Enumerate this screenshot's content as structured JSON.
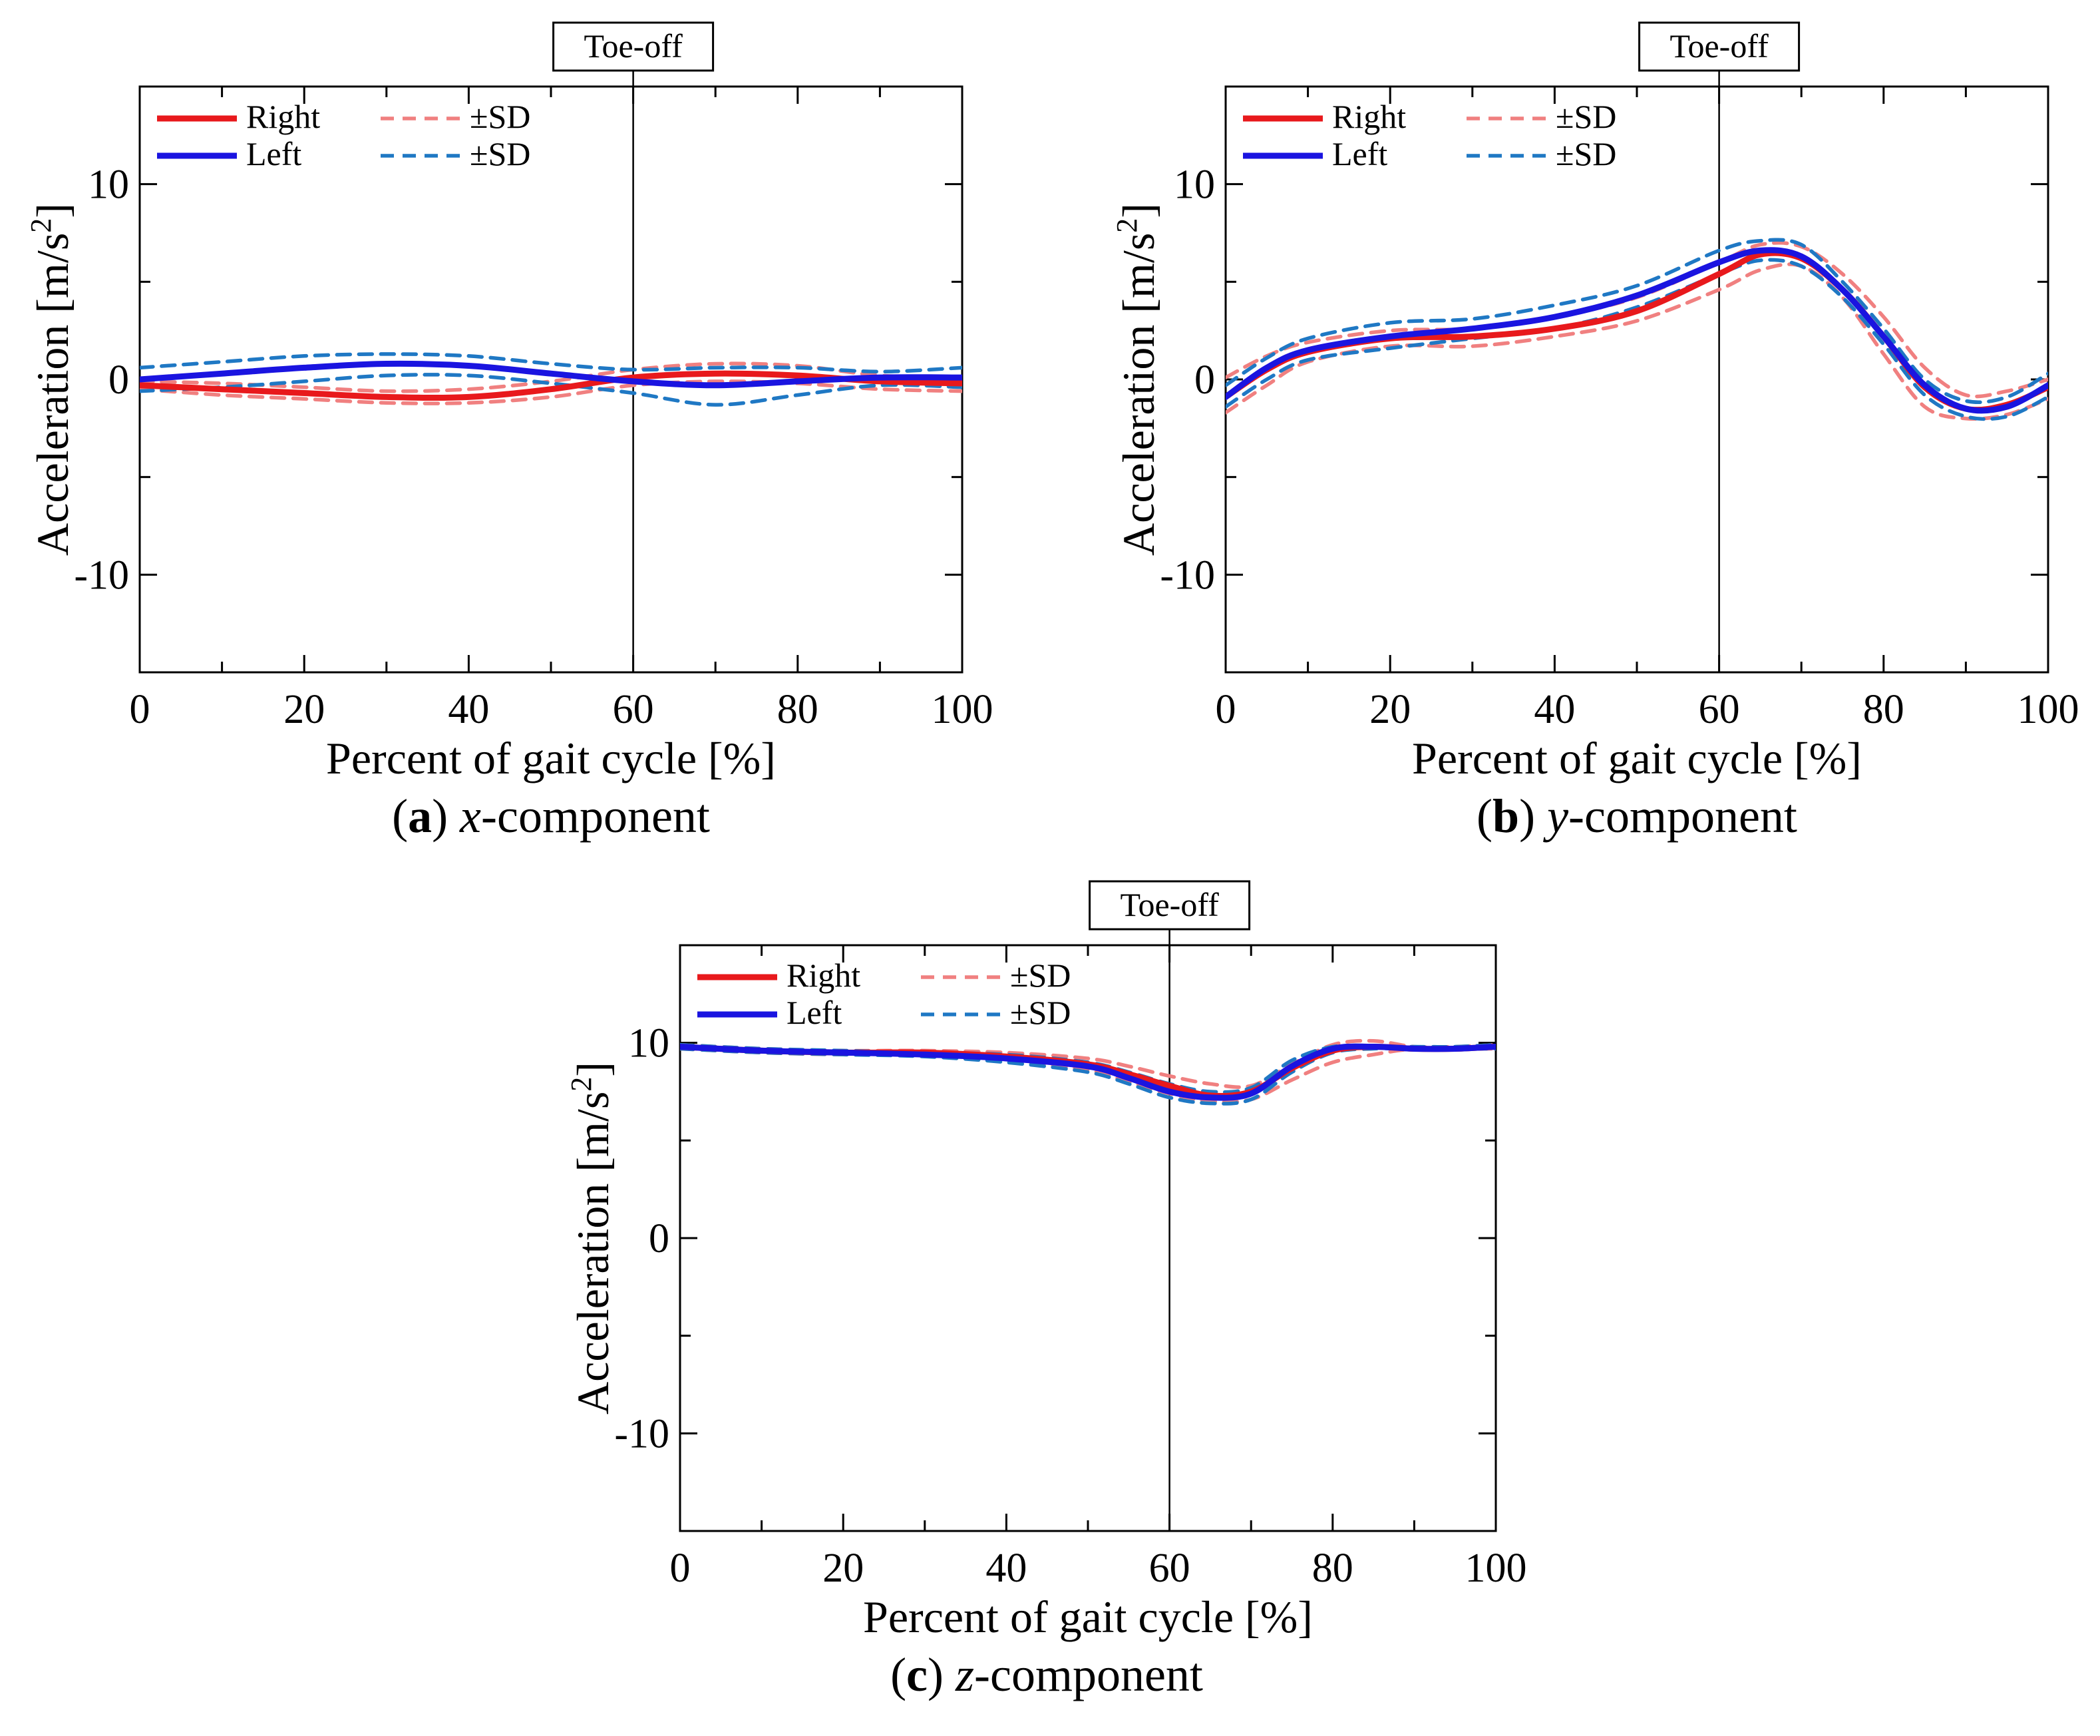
{
  "chart_data": [
    {
      "id": "a",
      "type": "line",
      "caption": {
        "letter": "a",
        "axis": "x",
        "suffix": "-component"
      },
      "xlabel": "Percent of gait cycle [%]",
      "ylabel": "Acceleration [m/s",
      "ylabel_sup": "2",
      "ylabel_close": "]",
      "xlim": [
        0,
        100
      ],
      "ylim": [
        -15,
        15
      ],
      "xticks": [
        0,
        20,
        40,
        60,
        80,
        100
      ],
      "yticks": [
        -10,
        0,
        10
      ],
      "ytick_labels": [
        "-10",
        "0",
        "10"
      ],
      "toe_off": {
        "x": 60,
        "label": "Toe-off"
      },
      "legend": {
        "right": "Right",
        "left": "Left",
        "sd": "±SD"
      },
      "x": [
        0,
        10,
        20,
        30,
        40,
        50,
        60,
        70,
        80,
        90,
        100
      ],
      "series": [
        {
          "name": "Right",
          "role": "mean",
          "color": "#e8191c",
          "values": [
            -0.3,
            -0.5,
            -0.7,
            -0.9,
            -0.9,
            -0.5,
            0.1,
            0.3,
            0.2,
            -0.1,
            -0.2
          ]
        },
        {
          "name": "Right +SD",
          "role": "sd",
          "color": "#f08080",
          "values": [
            -0.1,
            -0.2,
            -0.4,
            -0.6,
            -0.5,
            -0.1,
            0.5,
            0.8,
            0.7,
            0.2,
            0.1
          ]
        },
        {
          "name": "Right -SD",
          "role": "sd",
          "color": "#f08080",
          "values": [
            -0.5,
            -0.8,
            -1.0,
            -1.2,
            -1.2,
            -0.9,
            -0.3,
            -0.1,
            -0.2,
            -0.5,
            -0.6
          ]
        },
        {
          "name": "Left",
          "role": "mean",
          "color": "#1a14e0",
          "values": [
            0.0,
            0.3,
            0.6,
            0.8,
            0.7,
            0.3,
            -0.1,
            -0.3,
            -0.1,
            0.1,
            0.1
          ]
        },
        {
          "name": "Left +SD",
          "role": "sd",
          "color": "#1f78c4",
          "values": [
            0.6,
            0.9,
            1.2,
            1.3,
            1.2,
            0.8,
            0.5,
            0.6,
            0.6,
            0.4,
            0.6
          ]
        },
        {
          "name": "Left -SD",
          "role": "sd",
          "color": "#1f78c4",
          "values": [
            -0.6,
            -0.4,
            -0.1,
            0.2,
            0.2,
            -0.2,
            -0.7,
            -1.3,
            -0.8,
            -0.3,
            -0.4
          ]
        }
      ]
    },
    {
      "id": "b",
      "type": "line",
      "caption": {
        "letter": "b",
        "axis": "y",
        "suffix": "-component"
      },
      "xlabel": "Percent of gait cycle [%]",
      "ylabel": "Acceleration [m/s",
      "ylabel_sup": "2",
      "ylabel_close": "]",
      "xlim": [
        0,
        100
      ],
      "ylim": [
        -15,
        15
      ],
      "xticks": [
        0,
        20,
        40,
        60,
        80,
        100
      ],
      "yticks": [
        -10,
        0,
        10
      ],
      "ytick_labels": [
        "-10",
        "0",
        "10"
      ],
      "toe_off": {
        "x": 60,
        "label": "Toe-off"
      },
      "legend": {
        "right": "Right",
        "left": "Left",
        "sd": "±SD"
      },
      "x": [
        0,
        5,
        10,
        20,
        30,
        40,
        50,
        60,
        65,
        70,
        75,
        80,
        85,
        90,
        95,
        100
      ],
      "series": [
        {
          "name": "Right",
          "role": "mean",
          "color": "#e8191c",
          "values": [
            -0.9,
            0.5,
            1.4,
            2.1,
            2.2,
            2.6,
            3.5,
            5.4,
            6.4,
            6.2,
            4.6,
            2.2,
            -0.4,
            -1.5,
            -1.3,
            -0.4
          ]
        },
        {
          "name": "Right +SD",
          "role": "sd",
          "color": "#f08080",
          "values": [
            0.1,
            1.2,
            1.9,
            2.5,
            2.6,
            3.2,
            4.2,
            6.0,
            6.9,
            6.8,
            5.4,
            3.2,
            0.6,
            -0.8,
            -0.6,
            0.0
          ]
        },
        {
          "name": "Right -SD",
          "role": "sd",
          "color": "#f08080",
          "values": [
            -1.7,
            -0.3,
            0.9,
            1.7,
            1.7,
            2.2,
            3.0,
            4.6,
            5.6,
            5.8,
            4.2,
            1.3,
            -1.4,
            -2.0,
            -1.8,
            -1.0
          ]
        },
        {
          "name": "Left",
          "role": "mean",
          "color": "#1a14e0",
          "values": [
            -0.9,
            0.6,
            1.5,
            2.2,
            2.6,
            3.2,
            4.3,
            6.0,
            6.6,
            6.3,
            4.6,
            2.2,
            -0.3,
            -1.5,
            -1.4,
            -0.3
          ]
        },
        {
          "name": "Left +SD",
          "role": "sd",
          "color": "#1f78c4",
          "values": [
            -0.3,
            1.1,
            2.1,
            2.9,
            3.1,
            3.8,
            4.8,
            6.6,
            7.1,
            6.9,
            5.0,
            2.6,
            0.0,
            -1.1,
            -0.9,
            0.3
          ]
        },
        {
          "name": "Left -SD",
          "role": "sd",
          "color": "#1f78c4",
          "values": [
            -1.4,
            0.0,
            1.0,
            1.6,
            2.1,
            2.6,
            3.7,
            5.4,
            6.1,
            5.8,
            4.2,
            1.8,
            -0.8,
            -1.9,
            -1.9,
            -0.9
          ]
        }
      ]
    },
    {
      "id": "c",
      "type": "line",
      "caption": {
        "letter": "c",
        "axis": "z",
        "suffix": "-component"
      },
      "xlabel": "Percent of gait cycle [%]",
      "ylabel": "Acceleration [m/s",
      "ylabel_sup": "2",
      "ylabel_close": "]",
      "xlim": [
        0,
        100
      ],
      "ylim": [
        -15,
        15
      ],
      "xticks": [
        0,
        20,
        40,
        60,
        80,
        100
      ],
      "yticks": [
        -10,
        0,
        10
      ],
      "ytick_labels": [
        "-10",
        "0",
        "10"
      ],
      "toe_off": {
        "x": 60,
        "label": "Toe-off"
      },
      "legend": {
        "right": "Right",
        "left": "Left",
        "sd": "±SD"
      },
      "x": [
        0,
        10,
        20,
        30,
        40,
        50,
        55,
        60,
        65,
        70,
        75,
        80,
        85,
        90,
        95,
        100
      ],
      "series": [
        {
          "name": "Right",
          "role": "mean",
          "color": "#e8191c",
          "values": [
            9.8,
            9.6,
            9.5,
            9.5,
            9.3,
            8.9,
            8.4,
            7.8,
            7.3,
            7.5,
            8.7,
            9.6,
            9.8,
            9.7,
            9.7,
            9.8
          ]
        },
        {
          "name": "Right +SD",
          "role": "sd",
          "color": "#f08080",
          "values": [
            9.9,
            9.7,
            9.6,
            9.6,
            9.5,
            9.2,
            8.8,
            8.3,
            7.9,
            7.8,
            8.9,
            9.9,
            10.1,
            9.8,
            9.8,
            9.9
          ]
        },
        {
          "name": "Right -SD",
          "role": "sd",
          "color": "#f08080",
          "values": [
            9.7,
            9.5,
            9.4,
            9.4,
            9.1,
            8.6,
            8.0,
            7.4,
            7.0,
            7.1,
            8.1,
            9.0,
            9.4,
            9.7,
            9.7,
            9.7
          ]
        },
        {
          "name": "Left",
          "role": "mean",
          "color": "#1a14e0",
          "values": [
            9.8,
            9.6,
            9.5,
            9.4,
            9.2,
            8.8,
            8.2,
            7.5,
            7.2,
            7.4,
            8.8,
            9.7,
            9.8,
            9.7,
            9.7,
            9.8
          ]
        },
        {
          "name": "Left +SD",
          "role": "sd",
          "color": "#1f78c4",
          "values": [
            9.9,
            9.7,
            9.6,
            9.5,
            9.4,
            9.0,
            8.5,
            7.9,
            7.5,
            7.7,
            9.1,
            9.8,
            9.8,
            9.8,
            9.8,
            9.9
          ]
        },
        {
          "name": "Left -SD",
          "role": "sd",
          "color": "#1f78c4",
          "values": [
            9.7,
            9.5,
            9.4,
            9.3,
            9.0,
            8.5,
            7.9,
            7.2,
            6.9,
            7.1,
            8.5,
            9.5,
            9.7,
            9.7,
            9.7,
            9.7
          ]
        }
      ]
    }
  ]
}
